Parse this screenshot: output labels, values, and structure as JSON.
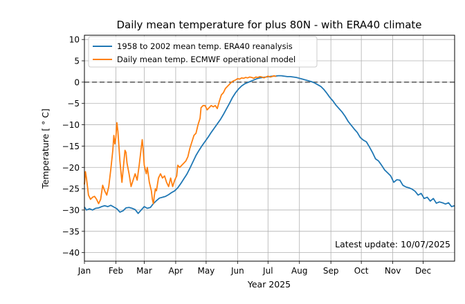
{
  "chart_data": {
    "type": "line",
    "title": "Daily mean temperature for plus 80N - with ERA40 climate",
    "xlabel": "Year 2025",
    "ylabel": "Temperature [$^\\circ$C]",
    "ylabel_display": "Temperature [ ° C]",
    "xlim": [
      1,
      366
    ],
    "ylim": [
      -42,
      11
    ],
    "x_ticks": [
      {
        "label": "Jan",
        "day": 1
      },
      {
        "label": "Feb",
        "day": 32
      },
      {
        "label": "Mar",
        "day": 60
      },
      {
        "label": "Apr",
        "day": 91
      },
      {
        "label": "May",
        "day": 121
      },
      {
        "label": "Jun",
        "day": 152
      },
      {
        "label": "Jul",
        "day": 182
      },
      {
        "label": "Aug",
        "day": 213
      },
      {
        "label": "Sep",
        "day": 244
      },
      {
        "label": "Oct",
        "day": 274
      },
      {
        "label": "Nov",
        "day": 305
      },
      {
        "label": "Dec",
        "day": 335
      }
    ],
    "y_ticks": [
      10,
      5,
      0,
      -5,
      -10,
      -15,
      -20,
      -25,
      -30,
      -35,
      -40
    ],
    "grid": true,
    "zero_line": {
      "y": 0,
      "style": "dashed"
    },
    "legend_position": "top-left",
    "annotation": "Latest update: 10/07/2025",
    "series": [
      {
        "name": "1958 to 2002 mean temp. ERA40 reanalysis",
        "color": "#1f77b4",
        "points": [
          [
            1,
            -29.3
          ],
          [
            3,
            -30.0
          ],
          [
            6,
            -29.7
          ],
          [
            9,
            -30.0
          ],
          [
            12,
            -29.6
          ],
          [
            15,
            -29.5
          ],
          [
            18,
            -29.2
          ],
          [
            21,
            -29.0
          ],
          [
            24,
            -29.2
          ],
          [
            27,
            -28.9
          ],
          [
            30,
            -29.3
          ],
          [
            33,
            -29.7
          ],
          [
            36,
            -30.5
          ],
          [
            39,
            -30.2
          ],
          [
            42,
            -29.5
          ],
          [
            45,
            -29.4
          ],
          [
            48,
            -29.6
          ],
          [
            51,
            -29.9
          ],
          [
            54,
            -30.8
          ],
          [
            57,
            -30.0
          ],
          [
            60,
            -29.2
          ],
          [
            63,
            -29.6
          ],
          [
            66,
            -29.4
          ],
          [
            69,
            -28.5
          ],
          [
            72,
            -27.8
          ],
          [
            75,
            -27.2
          ],
          [
            78,
            -27.0
          ],
          [
            81,
            -26.8
          ],
          [
            84,
            -26.4
          ],
          [
            87,
            -25.9
          ],
          [
            90,
            -25.5
          ],
          [
            93,
            -24.8
          ],
          [
            96,
            -23.8
          ],
          [
            99,
            -22.7
          ],
          [
            102,
            -21.6
          ],
          [
            105,
            -20.2
          ],
          [
            108,
            -18.7
          ],
          [
            111,
            -17.2
          ],
          [
            114,
            -16.0
          ],
          [
            117,
            -14.9
          ],
          [
            120,
            -13.9
          ],
          [
            123,
            -12.9
          ],
          [
            126,
            -11.8
          ],
          [
            129,
            -10.8
          ],
          [
            132,
            -9.8
          ],
          [
            135,
            -8.8
          ],
          [
            138,
            -7.6
          ],
          [
            141,
            -6.3
          ],
          [
            144,
            -5.0
          ],
          [
            147,
            -3.6
          ],
          [
            150,
            -2.5
          ],
          [
            153,
            -1.6
          ],
          [
            156,
            -0.9
          ],
          [
            159,
            -0.4
          ],
          [
            162,
            -0.1
          ],
          [
            165,
            0.2
          ],
          [
            168,
            0.5
          ],
          [
            171,
            0.8
          ],
          [
            174,
            1.0
          ],
          [
            177,
            1.1
          ],
          [
            180,
            1.2
          ],
          [
            183,
            1.3
          ],
          [
            186,
            1.4
          ],
          [
            189,
            1.4
          ],
          [
            192,
            1.5
          ],
          [
            195,
            1.5
          ],
          [
            198,
            1.4
          ],
          [
            201,
            1.3
          ],
          [
            204,
            1.3
          ],
          [
            207,
            1.2
          ],
          [
            210,
            1.1
          ],
          [
            213,
            0.9
          ],
          [
            216,
            0.7
          ],
          [
            219,
            0.5
          ],
          [
            222,
            0.3
          ],
          [
            225,
            0.1
          ],
          [
            228,
            -0.2
          ],
          [
            231,
            -0.6
          ],
          [
            234,
            -1.0
          ],
          [
            237,
            -1.7
          ],
          [
            240,
            -2.6
          ],
          [
            243,
            -3.6
          ],
          [
            246,
            -4.4
          ],
          [
            249,
            -5.4
          ],
          [
            252,
            -6.2
          ],
          [
            255,
            -7.0
          ],
          [
            258,
            -8.0
          ],
          [
            261,
            -9.2
          ],
          [
            264,
            -10.1
          ],
          [
            267,
            -11.0
          ],
          [
            270,
            -11.8
          ],
          [
            273,
            -13.0
          ],
          [
            276,
            -13.6
          ],
          [
            279,
            -14.0
          ],
          [
            282,
            -15.2
          ],
          [
            285,
            -16.5
          ],
          [
            288,
            -18.0
          ],
          [
            291,
            -18.5
          ],
          [
            294,
            -19.5
          ],
          [
            297,
            -20.6
          ],
          [
            300,
            -21.3
          ],
          [
            303,
            -22.0
          ],
          [
            306,
            -23.5
          ],
          [
            309,
            -22.9
          ],
          [
            312,
            -23.0
          ],
          [
            315,
            -24.2
          ],
          [
            318,
            -24.6
          ],
          [
            321,
            -24.8
          ],
          [
            324,
            -25.1
          ],
          [
            327,
            -25.6
          ],
          [
            330,
            -26.5
          ],
          [
            333,
            -26.1
          ],
          [
            336,
            -27.3
          ],
          [
            339,
            -27.0
          ],
          [
            342,
            -27.9
          ],
          [
            345,
            -27.3
          ],
          [
            348,
            -28.4
          ],
          [
            351,
            -28.1
          ],
          [
            354,
            -28.3
          ],
          [
            357,
            -28.6
          ],
          [
            360,
            -28.3
          ],
          [
            363,
            -29.2
          ],
          [
            366,
            -29.0
          ]
        ]
      },
      {
        "name": "Daily mean temp. ECMWF operational model",
        "color": "#ff7f0e",
        "points": [
          [
            1,
            -24.0
          ],
          [
            2,
            -21.0
          ],
          [
            3,
            -22.5
          ],
          [
            5,
            -26.5
          ],
          [
            7,
            -27.5
          ],
          [
            9,
            -27.0
          ],
          [
            11,
            -26.8
          ],
          [
            13,
            -27.5
          ],
          [
            15,
            -28.5
          ],
          [
            17,
            -27.5
          ],
          [
            19,
            -24.2
          ],
          [
            21,
            -25.5
          ],
          [
            23,
            -26.5
          ],
          [
            25,
            -24.5
          ],
          [
            27,
            -20.5
          ],
          [
            29,
            -16.0
          ],
          [
            30,
            -12.5
          ],
          [
            31,
            -14.5
          ],
          [
            32,
            -13.0
          ],
          [
            33,
            -9.5
          ],
          [
            34,
            -11.5
          ],
          [
            35,
            -15.0
          ],
          [
            36,
            -18.5
          ],
          [
            37,
            -21.0
          ],
          [
            38,
            -23.5
          ],
          [
            39,
            -21.0
          ],
          [
            40,
            -18.5
          ],
          [
            41,
            -16.0
          ],
          [
            42,
            -16.5
          ],
          [
            43,
            -19.0
          ],
          [
            45,
            -21.5
          ],
          [
            47,
            -24.5
          ],
          [
            49,
            -23.0
          ],
          [
            51,
            -21.5
          ],
          [
            53,
            -23.0
          ],
          [
            55,
            -19.5
          ],
          [
            57,
            -15.5
          ],
          [
            58,
            -13.5
          ],
          [
            59,
            -16.0
          ],
          [
            60,
            -19.5
          ],
          [
            62,
            -21.5
          ],
          [
            63,
            -20.0
          ],
          [
            65,
            -23.5
          ],
          [
            67,
            -25.5
          ],
          [
            68,
            -27.5
          ],
          [
            69,
            -28.5
          ],
          [
            70,
            -26.5
          ],
          [
            71,
            -25.0
          ],
          [
            72,
            -25.5
          ],
          [
            74,
            -22.5
          ],
          [
            76,
            -21.5
          ],
          [
            78,
            -22.5
          ],
          [
            80,
            -22.0
          ],
          [
            82,
            -23.5
          ],
          [
            84,
            -24.5
          ],
          [
            86,
            -22.5
          ],
          [
            88,
            -24.5
          ],
          [
            90,
            -23.0
          ],
          [
            92,
            -22.0
          ],
          [
            93,
            -19.5
          ],
          [
            95,
            -20.0
          ],
          [
            97,
            -19.5
          ],
          [
            99,
            -19.0
          ],
          [
            101,
            -18.5
          ],
          [
            103,
            -17.5
          ],
          [
            105,
            -15.5
          ],
          [
            107,
            -14.0
          ],
          [
            109,
            -12.5
          ],
          [
            111,
            -12.0
          ],
          [
            113,
            -10.0
          ],
          [
            115,
            -8.5
          ],
          [
            116,
            -6.0
          ],
          [
            118,
            -5.5
          ],
          [
            120,
            -5.5
          ],
          [
            122,
            -6.5
          ],
          [
            124,
            -6.0
          ],
          [
            126,
            -5.5
          ],
          [
            128,
            -5.8
          ],
          [
            130,
            -5.5
          ],
          [
            132,
            -6.2
          ],
          [
            134,
            -4.5
          ],
          [
            136,
            -3.0
          ],
          [
            138,
            -2.5
          ],
          [
            140,
            -1.5
          ],
          [
            142,
            -1.0
          ],
          [
            144,
            -0.5
          ],
          [
            146,
            0.0
          ],
          [
            148,
            0.3
          ],
          [
            150,
            0.5
          ],
          [
            152,
            0.8
          ],
          [
            154,
            0.7
          ],
          [
            156,
            1.0
          ],
          [
            158,
            0.9
          ],
          [
            160,
            1.1
          ],
          [
            162,
            1.0
          ],
          [
            164,
            1.2
          ],
          [
            166,
            1.1
          ],
          [
            168,
            0.9
          ],
          [
            170,
            1.2
          ],
          [
            172,
            1.1
          ],
          [
            174,
            1.3
          ],
          [
            176,
            1.2
          ],
          [
            178,
            1.0
          ],
          [
            180,
            1.2
          ],
          [
            182,
            1.4
          ],
          [
            184,
            1.2
          ],
          [
            186,
            1.3
          ],
          [
            188,
            1.5
          ],
          [
            190,
            1.3
          ]
        ]
      }
    ]
  }
}
